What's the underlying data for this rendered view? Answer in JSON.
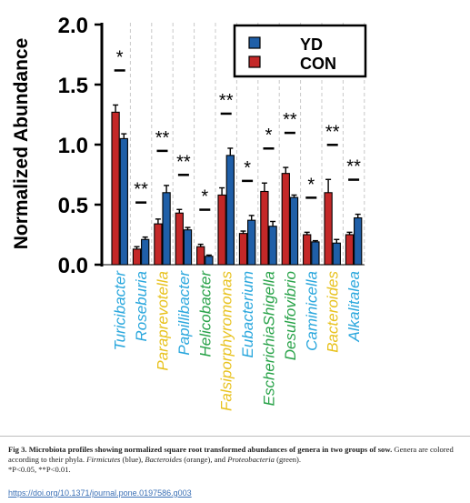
{
  "chart_data": {
    "type": "bar",
    "ylabel": "Normalized Abundance",
    "ylim": [
      0,
      2.0
    ],
    "yticks": [
      "0.0",
      "0.5",
      "1.0",
      "1.5",
      "2.0"
    ],
    "legend": {
      "placement": "top-right",
      "entries": [
        {
          "name": "YD",
          "color": "#1f5fa8"
        },
        {
          "name": "CON",
          "color": "#c42828"
        }
      ]
    },
    "phylum_colors": {
      "Firmicutes": "#2aa7dd",
      "Bacteroides": "#e8c21e",
      "Proteobacteria": "#2aa34a"
    },
    "categories": [
      {
        "name": "Turicibacter",
        "phylum": "Firmicutes",
        "con": 1.27,
        "con_err": 0.06,
        "yd": 1.05,
        "yd_err": 0.04,
        "sig": "*"
      },
      {
        "name": "Roseburia",
        "phylum": "Firmicutes",
        "con": 0.13,
        "con_err": 0.02,
        "yd": 0.21,
        "yd_err": 0.02,
        "sig": "**"
      },
      {
        "name": "Paraprevotella",
        "phylum": "Bacteroides",
        "con": 0.34,
        "con_err": 0.04,
        "yd": 0.6,
        "yd_err": 0.06,
        "sig": "**"
      },
      {
        "name": "Papillibacter",
        "phylum": "Firmicutes",
        "con": 0.43,
        "con_err": 0.03,
        "yd": 0.29,
        "yd_err": 0.02,
        "sig": "**"
      },
      {
        "name": "Helicobacter",
        "phylum": "Proteobacteria",
        "con": 0.15,
        "con_err": 0.02,
        "yd": 0.07,
        "yd_err": 0.01,
        "sig": "*"
      },
      {
        "name": "Falsiporphyromonas",
        "phylum": "Bacteroides",
        "con": 0.58,
        "con_err": 0.06,
        "yd": 0.91,
        "yd_err": 0.06,
        "sig": "**"
      },
      {
        "name": "Eubacterium",
        "phylum": "Firmicutes",
        "con": 0.26,
        "con_err": 0.02,
        "yd": 0.37,
        "yd_err": 0.04,
        "sig": "*"
      },
      {
        "name": "EscherichiaShigella",
        "phylum": "Proteobacteria",
        "con": 0.61,
        "con_err": 0.07,
        "yd": 0.32,
        "yd_err": 0.04,
        "sig": "*"
      },
      {
        "name": "Desulfovibrio",
        "phylum": "Proteobacteria",
        "con": 0.76,
        "con_err": 0.05,
        "yd": 0.56,
        "yd_err": 0.02,
        "sig": "**"
      },
      {
        "name": "Caminicella",
        "phylum": "Firmicutes",
        "con": 0.25,
        "con_err": 0.02,
        "yd": 0.19,
        "yd_err": 0.01,
        "sig": "*"
      },
      {
        "name": "Bacteroides",
        "phylum": "Bacteroides",
        "con": 0.6,
        "con_err": 0.11,
        "yd": 0.18,
        "yd_err": 0.03,
        "sig": "**"
      },
      {
        "name": "Alkalitalea",
        "phylum": "Firmicutes",
        "con": 0.25,
        "con_err": 0.02,
        "yd": 0.39,
        "yd_err": 0.03,
        "sig": "**"
      }
    ]
  },
  "caption": {
    "figure_label": "Fig 3.",
    "figure_title": "Microbiota profiles showing normalized square root transformed abundances of genera in two groups of sow.",
    "text_part1": "Genera are colored according to their phyla.",
    "phylum_a": "Firmicutes",
    "phylum_a_color": "(blue),",
    "phylum_b": "Bacteroides",
    "phylum_b_color": "(orange), and",
    "phylum_c": "Proteobacteria",
    "phylum_c_color": "(green).",
    "significance": "*P<0.05, **P<0.01."
  },
  "doi": "https://doi.org/10.1371/journal.pone.0197586.g003"
}
